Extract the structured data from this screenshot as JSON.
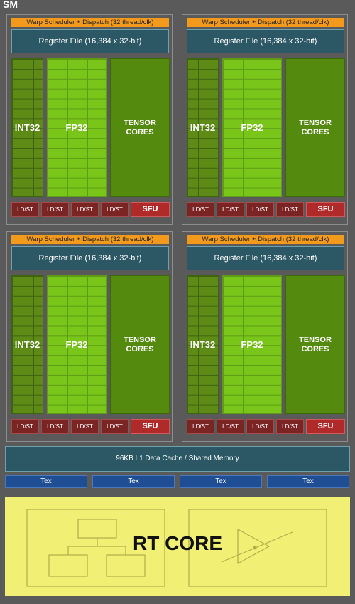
{
  "sm_label": "SM",
  "partition": {
    "warp_label": "Warp Scheduler + Dispatch (32 thread/clk)",
    "register_file_label": "Register File (16,384 x 32-bit)",
    "int32_label": "INT32",
    "fp32_label": "FP32",
    "tensor_label_line1": "TENSOR",
    "tensor_label_line2": "CORES",
    "ldst_label": "LD/ST",
    "sfu_label": "SFU"
  },
  "l1_cache_label": "96KB L1 Data Cache / Shared Memory",
  "tex_label": "Tex",
  "rt_core_label": "RT CORE",
  "colors": {
    "background": "#5a5a5a",
    "warp": "#f39a1d",
    "register_file": "#2c5866",
    "int32": "#5e8a16",
    "fp32": "#79c51a",
    "tensor": "#548b0f",
    "ldst": "#7a2424",
    "sfu": "#b02a2a",
    "tex": "#1f4e95",
    "rt_core": "#f2f074"
  }
}
